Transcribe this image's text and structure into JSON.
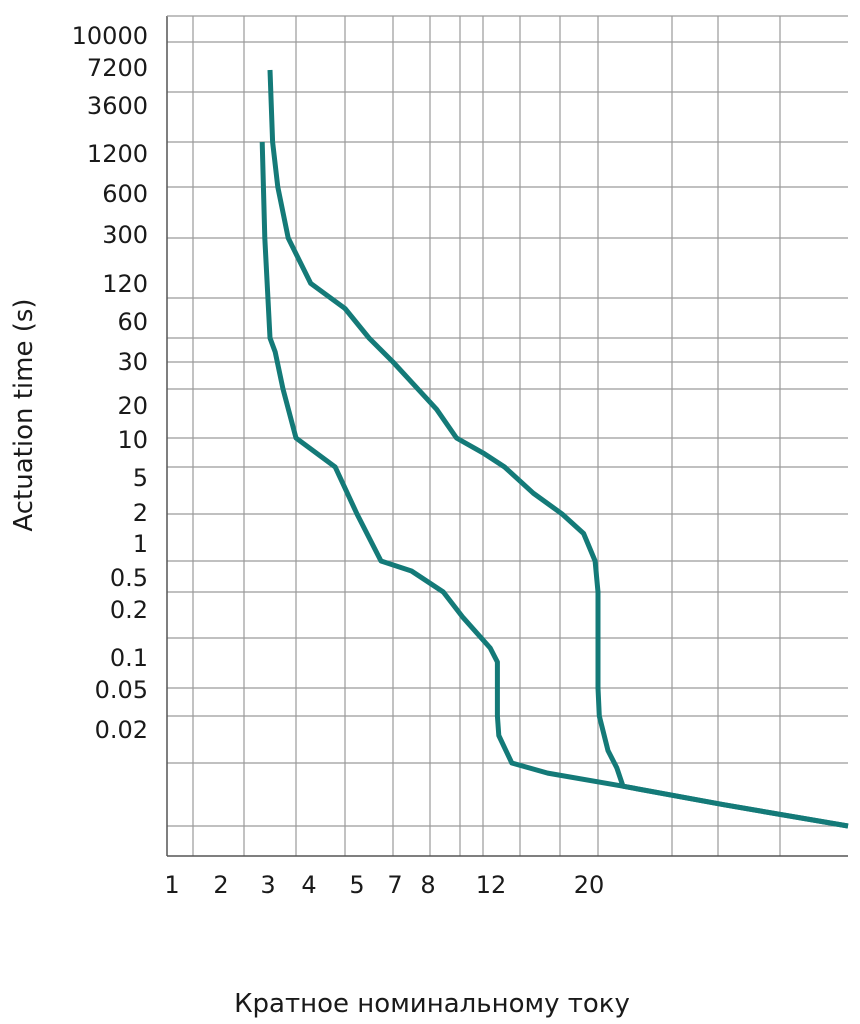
{
  "chart_data": {
    "type": "line",
    "title": "",
    "xlabel": "Кратное номинальному току",
    "ylabel": "Actuation time (s)",
    "x_ticks": [
      "1",
      "2",
      "3",
      "4",
      "5",
      "7",
      "8",
      "12",
      "20"
    ],
    "y_ticks": [
      "10000",
      "7200",
      "3600",
      "1200",
      "600",
      "300",
      "120",
      "60",
      "30",
      "20",
      "10",
      "5",
      "2",
      "1",
      "0.5",
      "0.2",
      "0.1",
      "0.05",
      "0.02"
    ],
    "grid": true,
    "line_color": "#147a78",
    "series": [
      {
        "x": [
          2.7,
          2.8,
          3,
          3.2,
          3.5,
          4,
          4.8,
          5.5,
          6.5,
          7.5,
          9,
          10.5,
          12.5,
          13,
          13,
          13,
          13.1,
          14,
          16.5,
          22,
          30,
          40
        ],
        "y": [
          1200,
          300,
          60,
          40,
          20,
          10,
          5,
          2,
          1,
          0.8,
          0.5,
          0.3,
          0.15,
          0.1,
          0.05,
          0.02,
          0.015,
          0.01,
          0.008,
          0.006,
          0.004,
          0.0025
        ]
      },
      {
        "x": [
          3,
          3.1,
          3.3,
          3.7,
          4.3,
          5,
          6,
          7,
          8.5,
          10,
          12,
          13.5,
          15.5,
          17.5,
          19,
          19.8,
          20,
          20,
          20,
          20.1,
          20.8,
          21.5,
          22,
          30,
          40
        ],
        "y": [
          7200,
          1200,
          600,
          300,
          150,
          100,
          60,
          30,
          15,
          10,
          7,
          5,
          3,
          2,
          1.5,
          1,
          0.5,
          0.2,
          0.05,
          0.02,
          0.012,
          0.009,
          0.006,
          0.004,
          0.0025
        ]
      }
    ]
  }
}
